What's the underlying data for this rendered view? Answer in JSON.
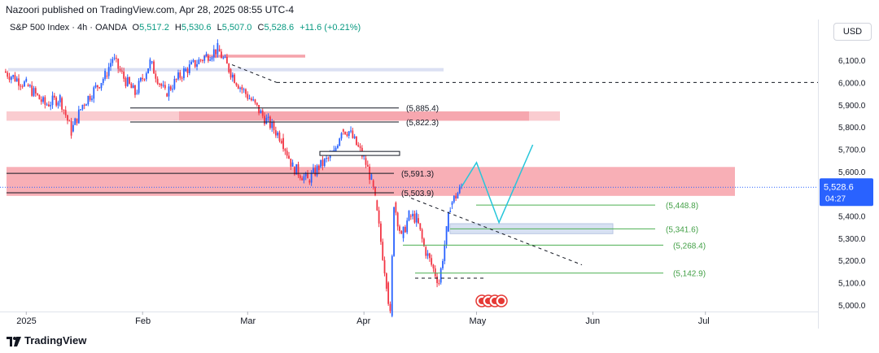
{
  "header": {
    "publisher": "Nazoori published on TradingView.com, Apr 28, 2025 08:55 UTC-4",
    "currency": "USD"
  },
  "legend": {
    "symbol": "S&P 500 Index · 4h · OANDA",
    "open_label": "O",
    "open": "5,517.2",
    "high_label": "H",
    "high": "5,530.6",
    "low_label": "L",
    "low": "5,507.0",
    "close_label": "C",
    "close": "5,528.6",
    "change": "+11.6 (+0.21%)"
  },
  "footer": {
    "brand": "TradingView"
  },
  "chart_data": {
    "type": "candlestick",
    "ylim": [
      4970,
      6210
    ],
    "x_range": [
      "2024-12-25",
      "2025-07-31"
    ],
    "y_ticks": [
      5000,
      5100,
      5200,
      5300,
      5400,
      5500,
      5600,
      5700,
      5800,
      5900,
      6000,
      6100
    ],
    "y_tick_labels": [
      "5,000.0",
      "5,100.0",
      "5,200.0",
      "5,300.0",
      "5,400.0",
      "5,500.0",
      "5,600.0",
      "5,700.0",
      "5,800.0",
      "5,900.0",
      "6,000.0",
      "6,100.0"
    ],
    "x_ticks": [
      {
        "date": "2025-01-01",
        "label": "2025"
      },
      {
        "date": "2025-02-01",
        "label": "Feb"
      },
      {
        "date": "2025-03-01",
        "label": "Mar"
      },
      {
        "date": "2025-04-01",
        "label": "Apr"
      },
      {
        "date": "2025-05-01",
        "label": "May"
      },
      {
        "date": "2025-06-01",
        "label": "Jun"
      },
      {
        "date": "2025-07-01",
        "label": "Jul"
      }
    ],
    "price_path": [
      {
        "date": "2024-12-26",
        "price": 6050
      },
      {
        "date": "2025-01-01",
        "price": 5990
      },
      {
        "date": "2025-01-06",
        "price": 5900
      },
      {
        "date": "2025-01-10",
        "price": 5930
      },
      {
        "date": "2025-01-13",
        "price": 5780
      },
      {
        "date": "2025-01-16",
        "price": 5900
      },
      {
        "date": "2025-01-22",
        "price": 6030
      },
      {
        "date": "2025-01-24",
        "price": 6110
      },
      {
        "date": "2025-01-27",
        "price": 6020
      },
      {
        "date": "2025-01-30",
        "price": 5950
      },
      {
        "date": "2025-02-03",
        "price": 6090
      },
      {
        "date": "2025-02-07",
        "price": 5950
      },
      {
        "date": "2025-02-12",
        "price": 6050
      },
      {
        "date": "2025-02-18",
        "price": 6120
      },
      {
        "date": "2025-02-21",
        "price": 6150
      },
      {
        "date": "2025-02-24",
        "price": 6060
      },
      {
        "date": "2025-02-27",
        "price": 5980
      },
      {
        "date": "2025-03-02",
        "price": 5920
      },
      {
        "date": "2025-03-05",
        "price": 5850
      },
      {
        "date": "2025-03-10",
        "price": 5750
      },
      {
        "date": "2025-03-13",
        "price": 5620
      },
      {
        "date": "2025-03-17",
        "price": 5560
      },
      {
        "date": "2025-03-20",
        "price": 5620
      },
      {
        "date": "2025-03-24",
        "price": 5680
      },
      {
        "date": "2025-03-26",
        "price": 5790
      },
      {
        "date": "2025-03-28",
        "price": 5780
      },
      {
        "date": "2025-04-01",
        "price": 5660
      },
      {
        "date": "2025-04-03",
        "price": 5560
      },
      {
        "date": "2025-04-04",
        "price": 5470
      },
      {
        "date": "2025-04-07",
        "price": 5100
      },
      {
        "date": "2025-04-08",
        "price": 4950
      },
      {
        "date": "2025-04-09",
        "price": 5460
      },
      {
        "date": "2025-04-11",
        "price": 5300
      },
      {
        "date": "2025-04-13",
        "price": 5400
      },
      {
        "date": "2025-04-15",
        "price": 5390
      },
      {
        "date": "2025-04-17",
        "price": 5260
      },
      {
        "date": "2025-04-21",
        "price": 5100
      },
      {
        "date": "2025-04-23",
        "price": 5330
      },
      {
        "date": "2025-04-24",
        "price": 5450
      },
      {
        "date": "2025-04-27",
        "price": 5530
      }
    ],
    "levels": [
      {
        "label": "(5,885.4)",
        "value": 5885.4
      },
      {
        "label": "(5,822.3)",
        "value": 5822.3
      },
      {
        "label": "(5,591.3)",
        "value": 5591.3
      },
      {
        "label": "(5,503.9)",
        "value": 5503.9
      },
      {
        "label": "(5,448.8)",
        "value": 5448.8
      },
      {
        "label": "(5,341.6)",
        "value": 5341.6
      },
      {
        "label": "(5,268.4)",
        "value": 5268.4
      },
      {
        "label": "(5,142.9)",
        "value": 5142.9
      }
    ],
    "dashed_level": 6000,
    "projection": [
      {
        "date": "2025-04-27",
        "price": 5530
      },
      {
        "date": "2025-05-01",
        "price": 5640
      },
      {
        "date": "2025-05-07",
        "price": 5370
      },
      {
        "date": "2025-05-16",
        "price": 5720
      }
    ],
    "last_price": {
      "label": "5,528.6",
      "countdown": "04:27",
      "value": 5528.6
    }
  }
}
